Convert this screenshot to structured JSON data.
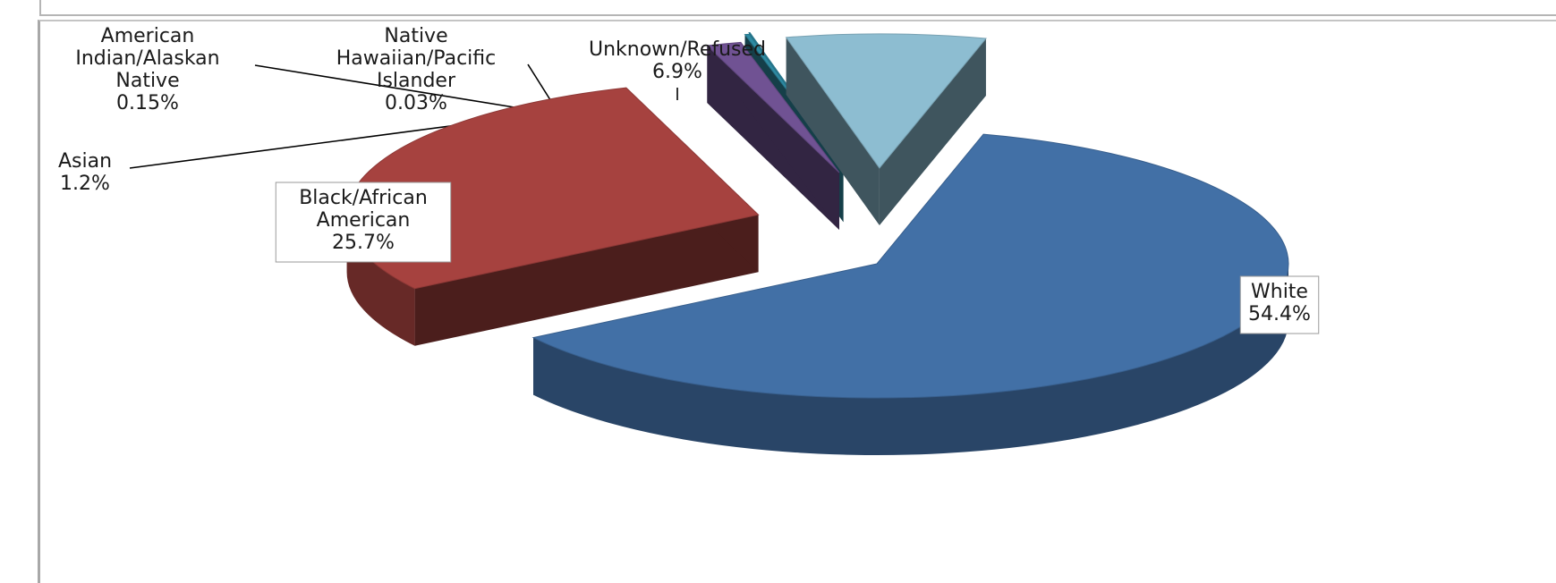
{
  "chart_data": {
    "type": "pie",
    "style": "3d-exploded",
    "slices": [
      {
        "label": "White",
        "value_label": "54.4%",
        "value": 54.4,
        "color": "#4270A6"
      },
      {
        "label": "Black/African American",
        "value_label": "25.7%",
        "value": 25.7,
        "color": "#A6423F"
      },
      {
        "label": "Asian",
        "value_label": "1.2%",
        "value": 1.2,
        "color": "#705293"
      },
      {
        "label": "American Indian/Alaskan Native",
        "value_label": "0.15%",
        "value": 0.15,
        "color": "#2E8BA3"
      },
      {
        "label": "Native Hawaiian/Pacific Islander",
        "value_label": "0.03%",
        "value": 0.03,
        "color": "#2E8BA3"
      },
      {
        "label": "Unknown/Refused",
        "value_label": "6.9%",
        "value": 6.9,
        "color": "#8DBDD1"
      }
    ],
    "labels": [
      {
        "lines": [
          "White",
          "54.4%"
        ]
      },
      {
        "lines": [
          "Black/African",
          "American",
          "25.7%"
        ]
      },
      {
        "lines": [
          "Asian",
          "1.2%"
        ]
      },
      {
        "lines": [
          "American",
          "Indian/Alaskan",
          "Native",
          "0.15%"
        ]
      },
      {
        "lines": [
          "Native",
          "Hawaiian/Pacific",
          "Islander",
          "0.03%"
        ]
      },
      {
        "lines": [
          "Unknown/Refused",
          "6.9%"
        ]
      }
    ],
    "legend": "none"
  }
}
